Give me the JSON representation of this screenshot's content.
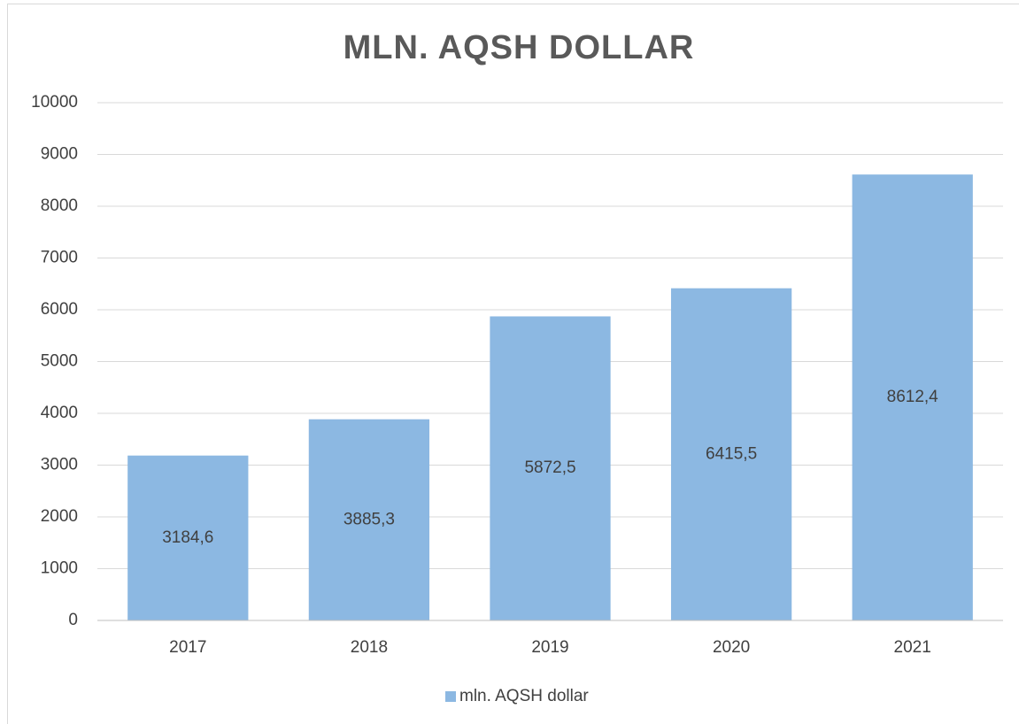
{
  "chart_data": {
    "type": "bar",
    "title": "MLN. AQSH DOLLAR",
    "categories": [
      "2017",
      "2018",
      "2019",
      "2020",
      "2021"
    ],
    "series": [
      {
        "name": "mln. AQSH dollar",
        "color": "#8cb8e2",
        "values": [
          3184.6,
          3885.3,
          5872.5,
          6415.5,
          8612.4
        ],
        "value_labels": [
          "3184,6",
          "3885,3",
          "5872,5",
          "6415,5",
          "8612,4"
        ]
      }
    ],
    "ylim": [
      0,
      10000
    ],
    "yticks": [
      0,
      1000,
      2000,
      3000,
      4000,
      5000,
      6000,
      7000,
      8000,
      9000,
      10000
    ],
    "grid": true,
    "legend": "bottom"
  }
}
